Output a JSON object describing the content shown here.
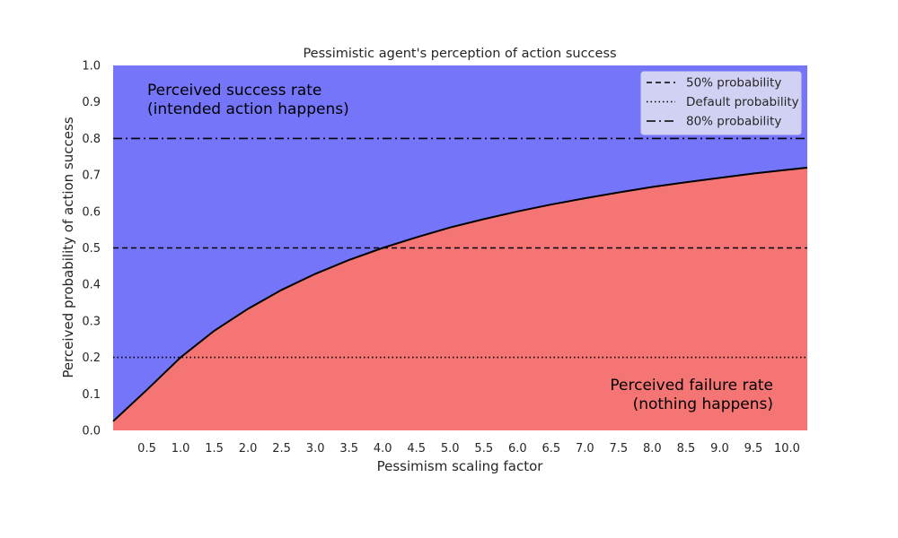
{
  "chart_data": {
    "type": "area",
    "title": "Pessimistic agent's perception of action success",
    "xlabel": "Pessimism scaling factor",
    "ylabel": "Perceived probability of action success",
    "xlim": [
      0.0,
      10.3
    ],
    "ylim": [
      0.0,
      1.0
    ],
    "xticks": [
      0.5,
      1.0,
      1.5,
      2.0,
      2.5,
      3.0,
      3.5,
      4.0,
      4.5,
      5.0,
      5.5,
      6.0,
      6.5,
      7.0,
      7.5,
      8.0,
      8.5,
      9.0,
      9.5,
      10.0
    ],
    "xtick_labels": [
      "0.5",
      "1.0",
      "1.5",
      "2.0",
      "2.5",
      "3.0",
      "3.5",
      "4.0",
      "4.5",
      "5.0",
      "5.5",
      "6.0",
      "6.5",
      "7.0",
      "7.5",
      "8.0",
      "8.5",
      "9.0",
      "9.5",
      "10.0"
    ],
    "yticks": [
      0.0,
      0.1,
      0.2,
      0.3,
      0.4,
      0.5,
      0.6,
      0.7,
      0.8,
      0.9,
      1.0
    ],
    "ytick_labels": [
      "0.0",
      "0.1",
      "0.2",
      "0.3",
      "0.4",
      "0.5",
      "0.6",
      "0.7",
      "0.8",
      "0.9",
      "1.0"
    ],
    "grid": false,
    "legend_position": "top-right",
    "curve": {
      "x": [
        0.0,
        0.5,
        1.0,
        1.5,
        2.0,
        2.5,
        3.0,
        3.5,
        4.0,
        4.5,
        5.0,
        5.5,
        6.0,
        6.5,
        7.0,
        7.5,
        8.0,
        8.5,
        9.0,
        9.5,
        10.0,
        10.3
      ],
      "y": [
        0.025,
        0.111,
        0.2,
        0.273,
        0.333,
        0.385,
        0.429,
        0.467,
        0.5,
        0.529,
        0.556,
        0.579,
        0.6,
        0.619,
        0.636,
        0.652,
        0.667,
        0.68,
        0.692,
        0.704,
        0.714,
        0.72
      ],
      "color": "#000000"
    },
    "regions": [
      {
        "label_lines": [
          "Perceived success rate",
          "(intended action happens)"
        ],
        "color": "#7575fa",
        "position": "above-curve"
      },
      {
        "label_lines": [
          "Perceived failure rate",
          "(nothing happens)"
        ],
        "color": "#f57575",
        "position": "below-curve"
      }
    ],
    "reference_lines": [
      {
        "name": "50% probability",
        "y": 0.5,
        "style": "dashed"
      },
      {
        "name": "Default probability",
        "y": 0.2,
        "style": "dotted"
      },
      {
        "name": "80% probability",
        "y": 0.8,
        "style": "dashdot"
      }
    ]
  }
}
